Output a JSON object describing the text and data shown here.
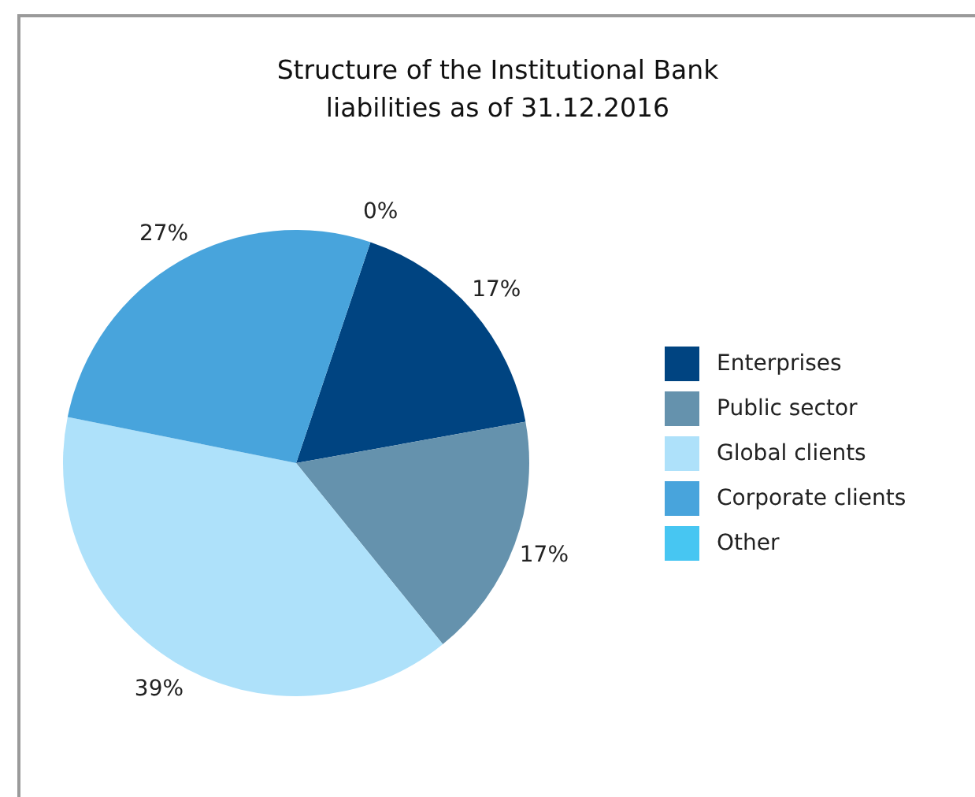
{
  "chart_data": {
    "type": "pie",
    "title": "Structure of the Institutional Bank\nliabilities as of 31.12.2016",
    "categories": [
      "Enterprises",
      "Public sector",
      "Global clients",
      "Corporate clients",
      "Other"
    ],
    "values": [
      17,
      17,
      39,
      27,
      0
    ],
    "value_labels": [
      "17%",
      "17%",
      "39%",
      "27%",
      "0%"
    ],
    "colors": [
      "#004481",
      "#6592ad",
      "#aee1fa",
      "#48a4dc",
      "#47c6f2"
    ],
    "legend": "right"
  }
}
